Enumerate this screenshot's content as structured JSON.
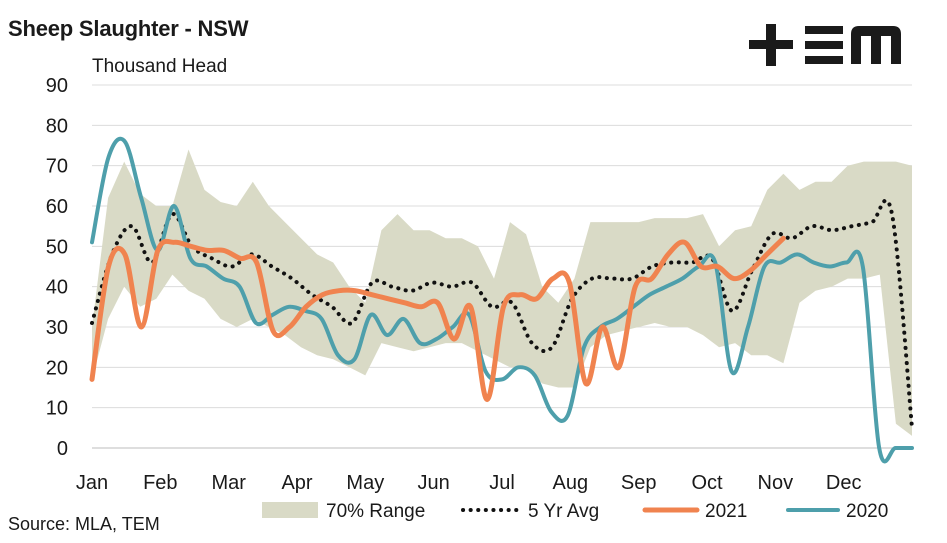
{
  "title": "Sheep Slaughter - NSW",
  "units_label": "Thousand Head",
  "source": "Source: MLA, TEM",
  "logo_text": "+ΞM",
  "chart_data": {
    "type": "line",
    "ylim": [
      0,
      90
    ],
    "y_ticks": [
      "0",
      "10",
      "20",
      "30",
      "40",
      "50",
      "60",
      "70",
      "80",
      "90"
    ],
    "months": [
      "Jan",
      "Feb",
      "Mar",
      "Apr",
      "May",
      "Jun",
      "Jul",
      "Aug",
      "Sep",
      "Oct",
      "Nov",
      "Dec"
    ],
    "x_weeks": 52,
    "grid": "horizontal",
    "legend_position": "bottom",
    "colors": {
      "range": "#d9dac6",
      "avg": "#111111",
      "y2021": "#f0834f",
      "y2020": "#4e9fab"
    },
    "legend": {
      "range": "70% Range",
      "avg": "5 Yr Avg",
      "y2021": "2021",
      "y2020": "2020"
    },
    "range_upper": [
      30,
      62,
      71,
      63,
      60,
      60,
      74,
      64,
      61,
      60,
      66,
      60,
      56,
      52,
      48,
      46,
      40,
      36,
      54,
      58,
      54,
      54,
      52,
      52,
      50,
      42,
      56,
      53,
      40,
      36,
      42,
      56,
      56,
      56,
      56,
      57,
      57,
      57,
      58,
      50,
      54,
      55,
      64,
      68,
      64,
      66,
      66,
      70,
      71,
      71,
      71,
      70
    ],
    "range_lower": [
      17,
      32,
      40,
      35,
      37,
      43,
      39,
      37,
      32,
      30,
      32,
      30,
      28,
      25,
      23,
      22,
      20,
      18,
      26,
      25,
      24,
      25,
      26,
      26,
      24,
      22,
      20,
      20,
      16,
      15,
      15,
      25,
      28,
      29,
      30,
      31,
      30,
      30,
      28,
      25,
      26,
      23,
      23,
      21,
      36,
      39,
      40,
      42,
      42,
      43,
      6,
      3
    ],
    "avg_5yr": [
      31,
      48,
      55,
      46,
      58,
      50,
      47,
      45,
      48,
      45,
      42,
      38,
      35,
      31,
      41,
      40,
      39,
      41,
      40,
      41,
      35,
      36,
      26,
      25,
      37,
      42,
      42,
      42,
      45,
      46,
      46,
      47,
      34,
      44,
      53,
      52,
      55,
      54,
      55,
      56,
      58,
      5
    ],
    "series_2021": [
      17,
      45,
      48,
      30,
      49,
      51,
      50,
      49,
      49,
      47,
      46,
      29,
      30,
      35,
      38,
      39,
      39,
      38,
      37,
      36,
      35,
      36,
      27,
      35,
      12,
      35,
      38,
      37,
      42,
      41,
      16,
      30,
      20,
      40,
      42,
      48,
      51,
      45,
      45,
      42,
      44,
      48,
      52
    ],
    "series_2020": [
      51,
      72,
      76,
      62,
      49,
      60,
      47,
      45,
      42,
      40,
      31,
      33,
      35,
      34,
      32,
      23,
      22,
      33,
      28,
      32,
      26,
      27,
      30,
      33,
      19,
      17,
      20,
      18,
      9,
      8,
      25,
      30,
      32,
      35,
      38,
      40,
      42,
      45,
      46,
      19,
      30,
      45,
      46,
      48,
      46,
      45,
      46,
      45,
      0,
      0,
      0
    ]
  }
}
